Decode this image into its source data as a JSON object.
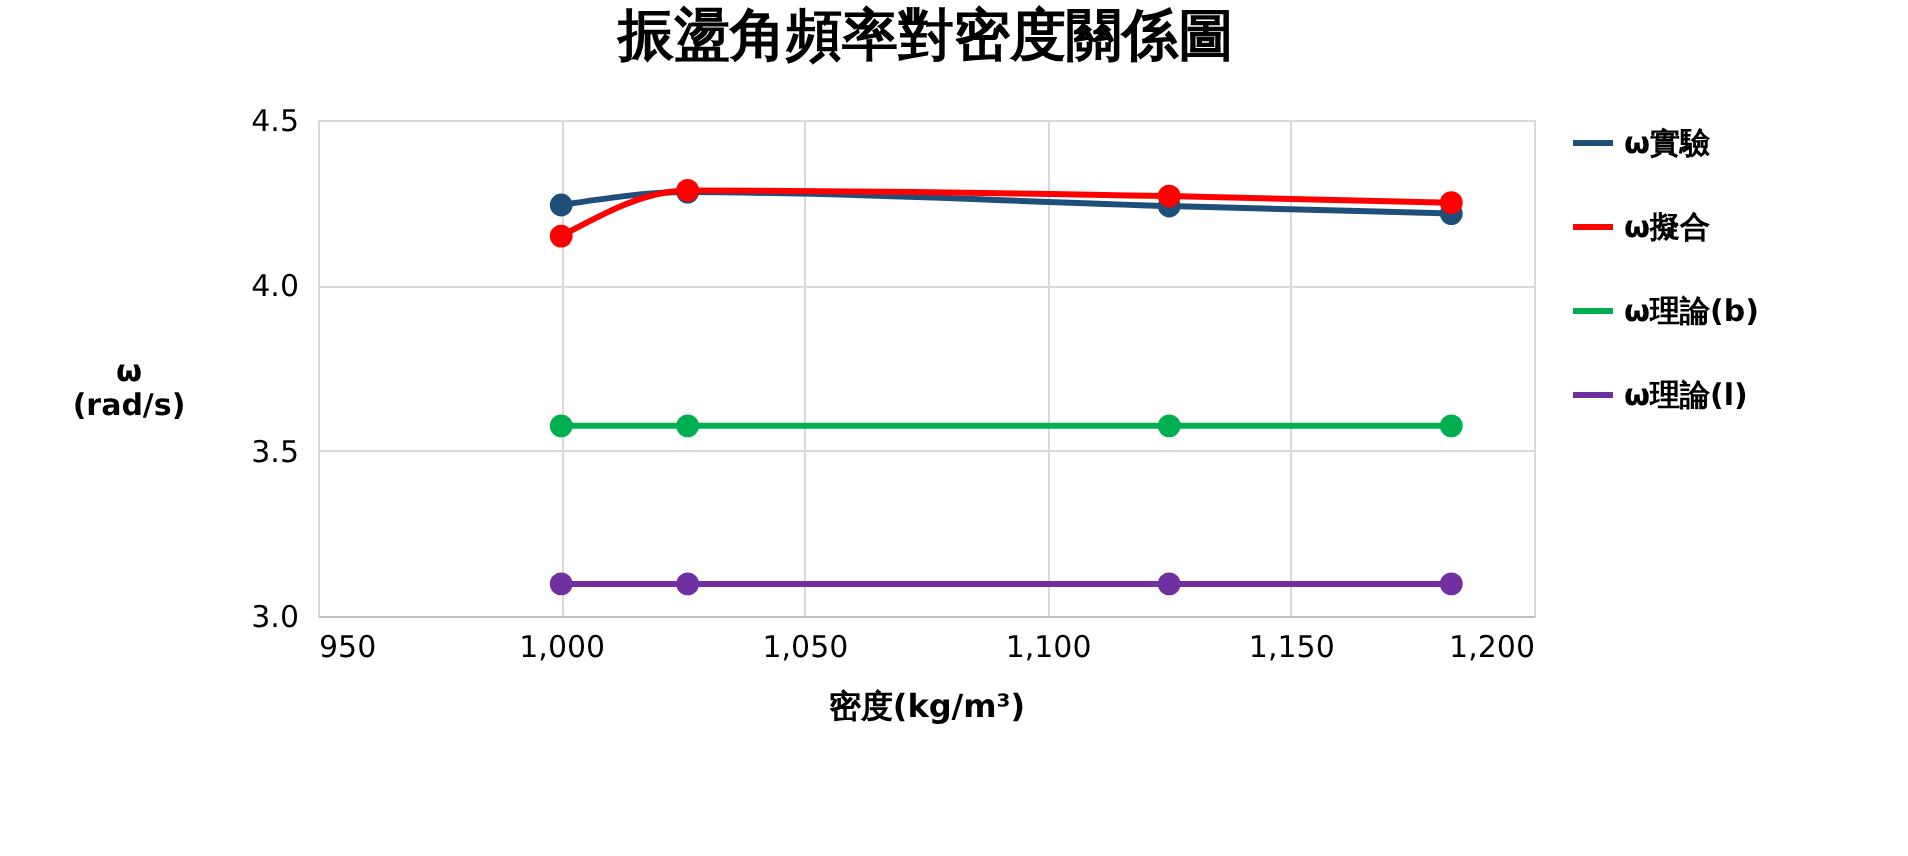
{
  "chart_data": {
    "type": "line",
    "title": "振盪角頻率對密度關係圖",
    "xlabel": "密度(kg/m³)",
    "ylabel": "ω\n(rad/s)",
    "x": [
      1000,
      1026,
      1125,
      1183
    ],
    "series": [
      {
        "name": "ω實驗",
        "color": "#1f4e79",
        "values": [
          4.243,
          4.282,
          4.24,
          4.217
        ]
      },
      {
        "name": "ω擬合",
        "color": "#ff0000",
        "values": [
          4.149,
          4.287,
          4.27,
          4.25
        ]
      },
      {
        "name": "ω理論(b)",
        "color": "#00b050",
        "values": [
          3.575,
          3.575,
          3.575,
          3.575
        ]
      },
      {
        "name": "ω理論(l)",
        "color": "#7030a0",
        "values": [
          3.097,
          3.097,
          3.097,
          3.097
        ]
      }
    ],
    "xlim": [
      950,
      1200
    ],
    "xticks": [
      950,
      {
        "value": 1000,
        "label": "1,000"
      },
      {
        "value": 1050,
        "label": "1,050"
      },
      {
        "value": 1100,
        "label": "1,100"
      },
      {
        "value": 1150,
        "label": "1,150"
      },
      {
        "value": 1200,
        "label": "1,200"
      }
    ],
    "ylim": [
      3.0,
      4.5
    ],
    "yticks": [
      {
        "value": 3.0,
        "label": "3.0"
      },
      3.5,
      {
        "value": 4.0,
        "label": "4.0"
      },
      4.5
    ],
    "grid": true,
    "legend": "right",
    "marker": "circle",
    "line_style": "solid"
  }
}
